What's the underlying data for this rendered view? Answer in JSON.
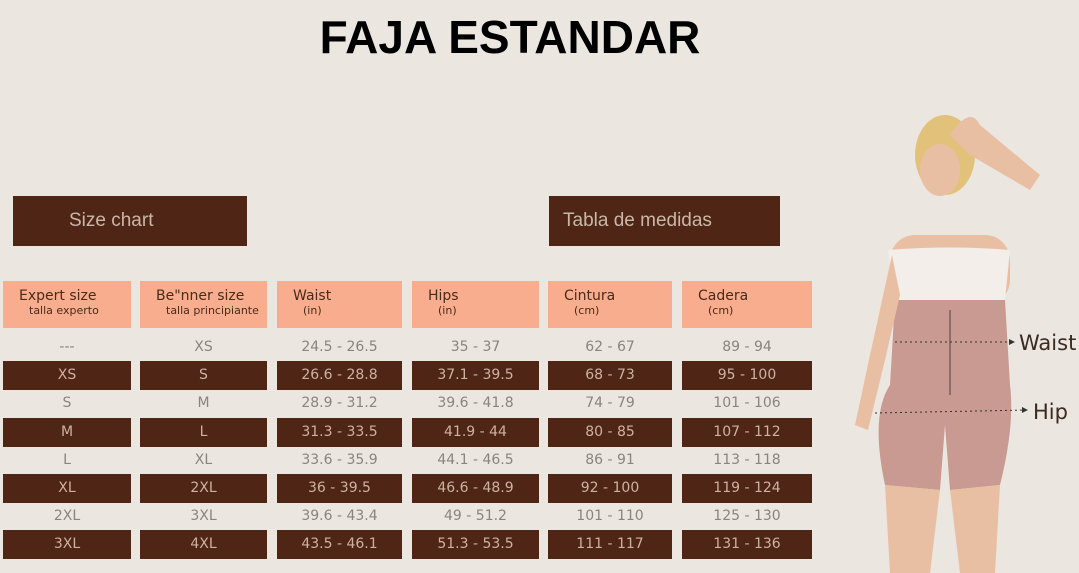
{
  "header": {
    "title": "FAJA ESTANDAR"
  },
  "banners": [
    "Size chart",
    "Tabla de medidas"
  ],
  "table": {
    "columns": [
      {
        "name": "Expert size",
        "sub": "talla experto"
      },
      {
        "name": "Be\"nner size",
        "sub": "talla principiante"
      },
      {
        "name": "Waist",
        "sub": "(in)"
      },
      {
        "name": "Hips",
        "sub": "(in)"
      },
      {
        "name": "Cintura",
        "sub": "(cm)"
      },
      {
        "name": "Cadera",
        "sub": "(cm)"
      }
    ],
    "rows": [
      [
        "---",
        "XS",
        "24.5  -  26.5",
        "35 - 37",
        "62  -  67",
        "89  -  94"
      ],
      [
        "XS",
        "S",
        "26.6 - 28.8",
        "37.1 - 39.5",
        "68 - 73",
        "95 - 100"
      ],
      [
        "S",
        "M",
        "28.9 - 31.2",
        "39.6 - 41.8",
        "74 - 79",
        "101 - 106"
      ],
      [
        "M",
        "L",
        "31.3 - 33.5",
        "41.9 - 44",
        "80 - 85",
        "107 - 112"
      ],
      [
        "L",
        "XL",
        "33.6 - 35.9",
        "44.1 - 46.5",
        "86 - 91",
        "113 - 118"
      ],
      [
        "XL",
        "2XL",
        "36 - 39.5",
        "46.6 - 48.9",
        "92 - 100",
        "119 - 124"
      ],
      [
        "2XL",
        "3XL",
        "39.6 - 43.4",
        "49 - 51.2",
        "101 - 110",
        "125 - 130"
      ],
      [
        "3XL",
        "4XL",
        "43.5 - 46.1",
        "51.3 - 53.5",
        "111 - 117",
        "131 - 136"
      ]
    ]
  },
  "figure": {
    "labels": [
      "Waist",
      "Hip"
    ]
  }
}
